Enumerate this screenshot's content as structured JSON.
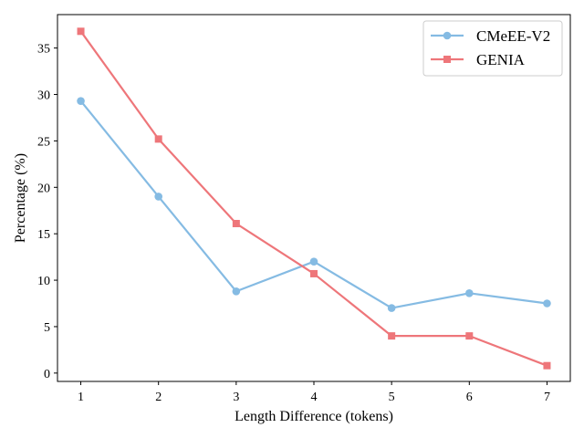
{
  "chart_data": {
    "type": "line",
    "title": "",
    "xlabel": "Length Difference (tokens)",
    "ylabel": "Percentage (%)",
    "x": [
      1,
      2,
      3,
      4,
      5,
      6,
      7
    ],
    "xticks": [
      "1",
      "2",
      "3",
      "4",
      "5",
      "6",
      "7"
    ],
    "yticks": [
      "0",
      "5",
      "10",
      "15",
      "20",
      "25",
      "30",
      "35"
    ],
    "xlim": [
      0.7,
      7.3
    ],
    "ylim": [
      -0.9,
      38.6
    ],
    "grid": false,
    "legend_position": "top-right",
    "series": [
      {
        "name": "CMeEE-V2",
        "marker": "circle",
        "color": "#85bbe3",
        "values": [
          29.3,
          19.0,
          8.8,
          12.0,
          7.0,
          8.6,
          7.5
        ]
      },
      {
        "name": "GENIA",
        "marker": "square",
        "color": "#ee767a",
        "values": [
          36.8,
          25.2,
          16.1,
          10.7,
          4.0,
          4.0,
          0.8
        ]
      }
    ]
  }
}
